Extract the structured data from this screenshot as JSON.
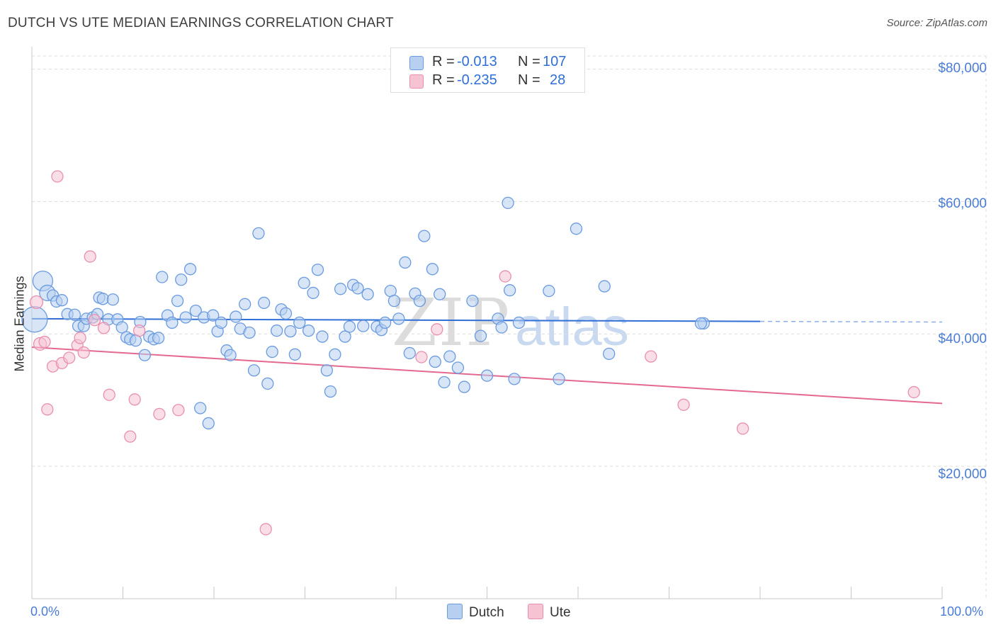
{
  "title": "DUTCH VS UTE MEDIAN EARNINGS CORRELATION CHART",
  "source": "Source: ZipAtlas.com",
  "watermark": {
    "part1": "ZIP",
    "part2": "atlas"
  },
  "legend": {
    "dutch": {
      "r_label": "R =",
      "r_value": "-0.013",
      "n_label": "N =",
      "n_value": "107"
    },
    "ute": {
      "r_label": "R =",
      "r_value": "-0.235",
      "n_label": "N =",
      "n_value": "28"
    }
  },
  "chart_data": {
    "type": "scatter",
    "title": "DUTCH VS UTE MEDIAN EARNINGS CORRELATION CHART",
    "xlabel": "",
    "ylabel": "Median Earnings",
    "xlim": [
      0,
      100
    ],
    "ylim": [
      0,
      82000
    ],
    "y_ticks": [
      {
        "value": 20000,
        "label": "$20,000"
      },
      {
        "value": 40000,
        "label": "$40,000"
      },
      {
        "value": 60000,
        "label": "$60,000"
      },
      {
        "value": 80000,
        "label": "$80,000"
      }
    ],
    "x_ticks": [
      {
        "value": 0,
        "label": "0.0%"
      },
      {
        "value": 100,
        "label": "100.0%"
      }
    ],
    "colors": {
      "dutch_fill": "#b7d0f0",
      "dutch_stroke": "#6a9be0",
      "dutch_line": "#2f6fd6",
      "ute_fill": "#f6c3d3",
      "ute_stroke": "#e890ae",
      "ute_line": "#e4698f",
      "grid": "#dddddd",
      "axis_text": "#4a7cd6"
    },
    "series": [
      {
        "name": "Dutch",
        "r": -0.013,
        "n": 107,
        "trend": {
          "x0": 0,
          "y0": 42300,
          "x1": 80,
          "y1": 41900,
          "dash_to_x": 100,
          "dash_y": 41800
        },
        "points": [
          [
            0.3,
            42200,
            18
          ],
          [
            1.2,
            48000,
            14
          ],
          [
            1.7,
            46200,
            11
          ],
          [
            2.3,
            45800,
            8
          ],
          [
            2.7,
            44900,
            8
          ],
          [
            3.3,
            45100,
            8
          ],
          [
            3.9,
            43000,
            8
          ],
          [
            4.7,
            42900,
            8
          ],
          [
            5.1,
            41200,
            8
          ],
          [
            5.7,
            41200,
            8
          ],
          [
            6.0,
            42300,
            8
          ],
          [
            6.7,
            42500,
            8
          ],
          [
            7.2,
            43000,
            8
          ],
          [
            7.4,
            45500,
            8
          ],
          [
            7.8,
            45300,
            8
          ],
          [
            8.4,
            42200,
            8
          ],
          [
            8.9,
            45200,
            8
          ],
          [
            9.4,
            42200,
            8
          ],
          [
            9.9,
            41000,
            8
          ],
          [
            10.4,
            39500,
            8
          ],
          [
            10.8,
            39200,
            8
          ],
          [
            11.4,
            39000,
            8
          ],
          [
            11.9,
            41800,
            8
          ],
          [
            12.4,
            36800,
            8
          ],
          [
            12.9,
            39600,
            8
          ],
          [
            13.4,
            39200,
            8
          ],
          [
            13.9,
            39400,
            8
          ],
          [
            14.3,
            48600,
            8
          ],
          [
            14.9,
            42800,
            8
          ],
          [
            15.4,
            41700,
            8
          ],
          [
            16.0,
            45000,
            8
          ],
          [
            16.4,
            48200,
            8
          ],
          [
            16.9,
            42500,
            8
          ],
          [
            17.4,
            49800,
            8
          ],
          [
            18.0,
            43500,
            8
          ],
          [
            18.5,
            28800,
            8
          ],
          [
            18.9,
            42500,
            8
          ],
          [
            19.4,
            26500,
            8
          ],
          [
            19.9,
            42800,
            8
          ],
          [
            20.4,
            40400,
            8
          ],
          [
            20.8,
            41700,
            8
          ],
          [
            21.4,
            37500,
            8
          ],
          [
            21.8,
            36800,
            8
          ],
          [
            22.4,
            42600,
            8
          ],
          [
            22.9,
            40800,
            8
          ],
          [
            23.4,
            44500,
            8
          ],
          [
            23.9,
            40200,
            8
          ],
          [
            24.4,
            34500,
            8
          ],
          [
            24.9,
            55200,
            8
          ],
          [
            25.5,
            44700,
            8
          ],
          [
            25.9,
            32500,
            8
          ],
          [
            26.4,
            37300,
            8
          ],
          [
            26.9,
            40500,
            8
          ],
          [
            27.4,
            43700,
            8
          ],
          [
            27.9,
            43100,
            8
          ],
          [
            28.4,
            40400,
            8
          ],
          [
            28.9,
            36900,
            8
          ],
          [
            29.4,
            41700,
            8
          ],
          [
            29.9,
            47700,
            8
          ],
          [
            30.4,
            40500,
            8
          ],
          [
            30.9,
            46200,
            8
          ],
          [
            31.4,
            49700,
            8
          ],
          [
            31.9,
            39600,
            8
          ],
          [
            32.4,
            34500,
            8
          ],
          [
            32.8,
            31300,
            8
          ],
          [
            33.3,
            36900,
            8
          ],
          [
            33.9,
            46800,
            8
          ],
          [
            34.4,
            39600,
            8
          ],
          [
            34.9,
            41100,
            8
          ],
          [
            35.3,
            47400,
            8
          ],
          [
            35.8,
            46900,
            8
          ],
          [
            36.4,
            41200,
            8
          ],
          [
            36.9,
            46000,
            8
          ],
          [
            37.9,
            41100,
            8
          ],
          [
            38.4,
            40600,
            8
          ],
          [
            38.8,
            41700,
            8
          ],
          [
            39.4,
            46500,
            8
          ],
          [
            39.8,
            45000,
            8
          ],
          [
            40.3,
            42300,
            8
          ],
          [
            41.0,
            50800,
            8
          ],
          [
            41.5,
            37100,
            8
          ],
          [
            42.1,
            46100,
            8
          ],
          [
            42.6,
            45000,
            8
          ],
          [
            43.1,
            54800,
            8
          ],
          [
            44.0,
            49800,
            8
          ],
          [
            44.3,
            35800,
            8
          ],
          [
            44.8,
            46000,
            8
          ],
          [
            45.3,
            32700,
            8
          ],
          [
            45.9,
            36600,
            8
          ],
          [
            46.8,
            34900,
            8
          ],
          [
            47.5,
            32000,
            8
          ],
          [
            48.4,
            45000,
            8
          ],
          [
            49.3,
            39700,
            8
          ],
          [
            50.0,
            33700,
            8
          ],
          [
            51.2,
            42300,
            8
          ],
          [
            51.6,
            41000,
            8
          ],
          [
            52.3,
            59800,
            8
          ],
          [
            52.5,
            46600,
            8
          ],
          [
            53.0,
            33200,
            8
          ],
          [
            53.5,
            41700,
            8
          ],
          [
            56.8,
            46500,
            8
          ],
          [
            57.9,
            33200,
            8
          ],
          [
            59.8,
            55900,
            8
          ],
          [
            62.9,
            47200,
            8
          ],
          [
            63.4,
            37000,
            8
          ],
          [
            73.8,
            41600,
            8
          ],
          [
            73.5,
            41600,
            8
          ]
        ]
      },
      {
        "name": "Ute",
        "r": -0.235,
        "n": 28,
        "trend": {
          "x0": 0,
          "y0": 38000,
          "x1": 100,
          "y1": 29500
        },
        "points": [
          [
            0.5,
            44800,
            9
          ],
          [
            0.9,
            38500,
            9
          ],
          [
            1.4,
            38800,
            8
          ],
          [
            1.7,
            28600,
            8
          ],
          [
            2.3,
            35100,
            8
          ],
          [
            2.8,
            63800,
            8
          ],
          [
            3.3,
            35600,
            8
          ],
          [
            4.1,
            36400,
            8
          ],
          [
            5.0,
            38300,
            8
          ],
          [
            5.3,
            39400,
            8
          ],
          [
            5.7,
            37200,
            8
          ],
          [
            6.4,
            51700,
            8
          ],
          [
            6.9,
            42100,
            8
          ],
          [
            7.9,
            40900,
            8
          ],
          [
            8.5,
            30800,
            8
          ],
          [
            10.8,
            24500,
            8
          ],
          [
            11.3,
            30100,
            8
          ],
          [
            11.8,
            40500,
            8
          ],
          [
            14.0,
            27900,
            8
          ],
          [
            16.1,
            28500,
            8
          ],
          [
            25.7,
            10500,
            8
          ],
          [
            42.8,
            36500,
            8
          ],
          [
            44.5,
            40700,
            8
          ],
          [
            52.0,
            48700,
            8
          ],
          [
            68.0,
            36600,
            8
          ],
          [
            71.6,
            29300,
            8
          ],
          [
            78.1,
            25700,
            8
          ],
          [
            96.9,
            31200,
            8
          ]
        ]
      }
    ]
  }
}
